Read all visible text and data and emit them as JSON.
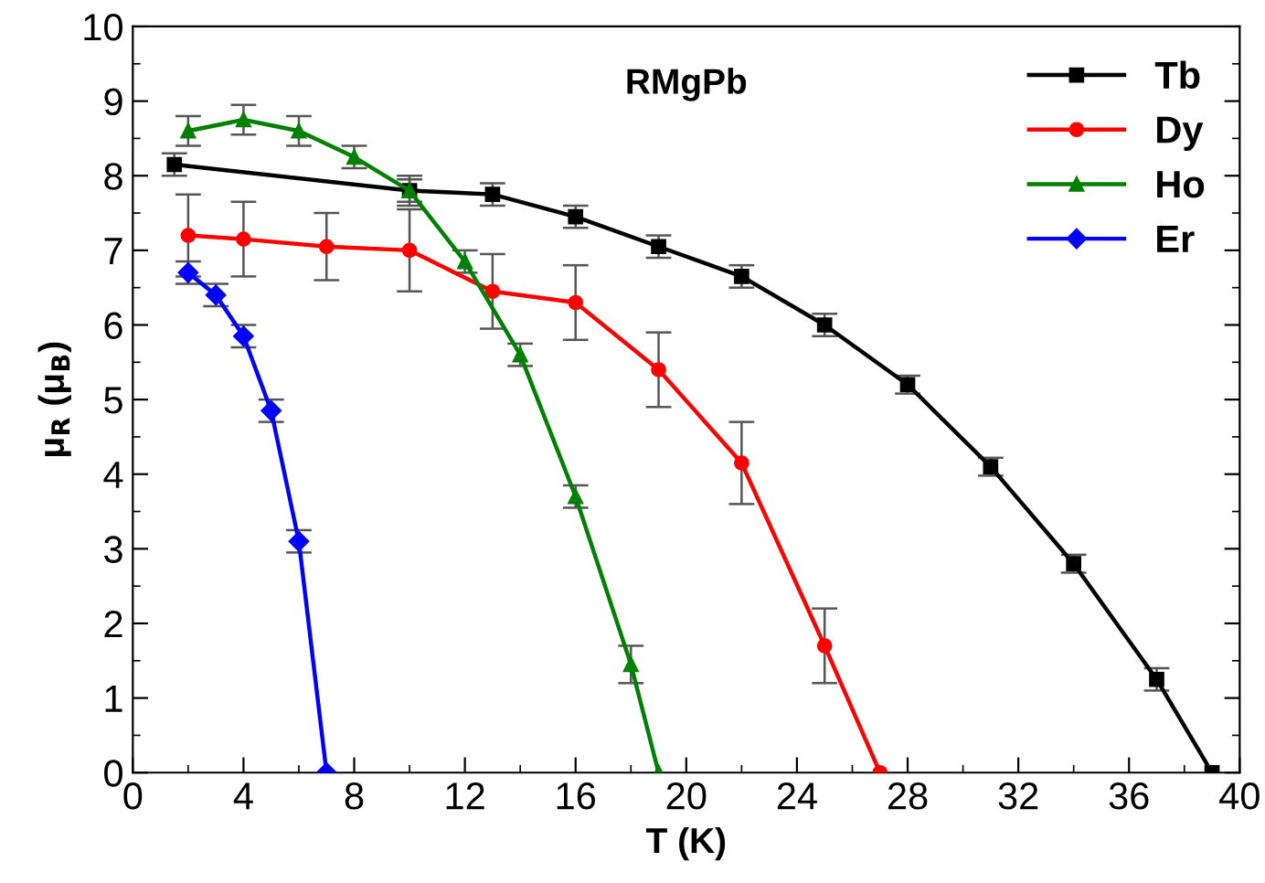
{
  "chart_data": {
    "type": "line",
    "title": "RMgPb",
    "xlabel": "T (K)",
    "ylabel": "μ$_{R}$ (μ$_{B}$)",
    "xlim": [
      0,
      40
    ],
    "xticks": [
      0,
      4,
      8,
      12,
      16,
      20,
      24,
      28,
      32,
      36,
      40
    ],
    "ylim": [
      0,
      10
    ],
    "yticks": [
      0,
      1,
      2,
      3,
      4,
      5,
      6,
      7,
      8,
      9,
      10
    ],
    "legend": "top right",
    "grid": false,
    "line_style": "solid",
    "series": [
      {
        "name": "Tb",
        "color": "#000000",
        "marker": "square",
        "x": [
          1.5,
          10,
          13,
          16,
          19,
          22,
          25,
          28,
          31,
          34,
          37,
          39
        ],
        "values": [
          8.15,
          7.8,
          7.75,
          7.45,
          7.05,
          6.65,
          6.0,
          5.2,
          4.1,
          2.8,
          1.25,
          0
        ],
        "errors": [
          0.15,
          0.15,
          0.15,
          0.15,
          0.15,
          0.15,
          0.15,
          0.12,
          0.12,
          0.12,
          0.15,
          null
        ]
      },
      {
        "name": "Dy",
        "color": "#ff0000",
        "marker": "circle",
        "x": [
          2,
          4,
          7,
          10,
          13,
          16,
          19,
          22,
          25,
          27
        ],
        "values": [
          7.2,
          7.15,
          7.05,
          7.0,
          6.45,
          6.3,
          5.4,
          4.15,
          1.7,
          0
        ],
        "errors": [
          0.55,
          0.5,
          0.45,
          0.55,
          0.5,
          0.5,
          0.5,
          0.55,
          0.5,
          null
        ]
      },
      {
        "name": "Ho",
        "color": "#008000",
        "marker": "triangle",
        "x": [
          2,
          4,
          6,
          8,
          10,
          12,
          14,
          16,
          18,
          19
        ],
        "values": [
          8.6,
          8.75,
          8.6,
          8.25,
          7.8,
          6.85,
          5.6,
          3.7,
          1.45,
          0
        ],
        "errors": [
          0.2,
          0.2,
          0.2,
          0.15,
          0.2,
          0.15,
          0.15,
          0.15,
          0.25,
          null
        ]
      },
      {
        "name": "Er",
        "color": "#0000ff",
        "marker": "diamond",
        "x": [
          2,
          3,
          4,
          5,
          6,
          7
        ],
        "values": [
          6.7,
          6.4,
          5.85,
          4.85,
          3.1,
          0
        ],
        "errors": [
          0.15,
          0.15,
          0.15,
          0.15,
          0.15,
          null
        ]
      }
    ]
  }
}
